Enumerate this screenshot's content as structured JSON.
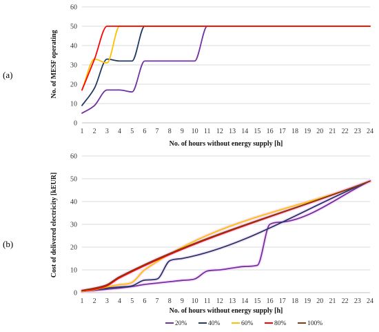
{
  "colors": {
    "20%": "#7030A0",
    "40%": "#1F3864",
    "60%": "#FFC000",
    "80%": "#FF0000",
    "100%": "#833C0B",
    "grid": "#D9D9D9",
    "axis": "#BFBFBF",
    "glow_b": "#F2C6F2"
  },
  "chart_data": [
    {
      "panel_label": "(a)",
      "type": "line",
      "xlabel": "No. of hours without energy supply [h]",
      "ylabel": "No. of MESF operating",
      "xlim": [
        1,
        24
      ],
      "ylim": [
        0,
        60
      ],
      "xticks": [
        1,
        2,
        3,
        4,
        5,
        6,
        7,
        8,
        9,
        10,
        11,
        12,
        13,
        14,
        15,
        16,
        17,
        18,
        19,
        20,
        21,
        22,
        23,
        24
      ],
      "yticks": [
        0,
        10,
        20,
        30,
        40,
        50,
        60
      ],
      "grid": "horizontal",
      "series": [
        {
          "name": "20%",
          "x": [
            1,
            2,
            3,
            4,
            5,
            6,
            7,
            8,
            9,
            10,
            11,
            12,
            24
          ],
          "y": [
            5,
            9,
            17,
            17,
            16,
            32,
            32,
            32,
            32,
            32,
            50,
            50,
            50
          ]
        },
        {
          "name": "40%",
          "x": [
            1,
            2,
            3,
            4,
            5,
            6,
            7,
            24
          ],
          "y": [
            9,
            18,
            33,
            32,
            32,
            50,
            50,
            50
          ]
        },
        {
          "name": "60%",
          "x": [
            1,
            2,
            3,
            4,
            5,
            24
          ],
          "y": [
            17,
            33,
            31,
            50,
            50,
            50
          ]
        },
        {
          "name": "80%",
          "x": [
            1,
            2,
            3,
            4,
            24
          ],
          "y": [
            17,
            33,
            50,
            50,
            50
          ]
        }
      ]
    },
    {
      "panel_label": "(b)",
      "type": "line",
      "xlabel": "No. of hours without energy supply [h]",
      "ylabel": "Cost of delivered electricity [kEUR]",
      "xlim": [
        1,
        24
      ],
      "ylim": [
        0,
        60
      ],
      "xticks": [
        1,
        2,
        3,
        4,
        5,
        6,
        7,
        8,
        9,
        10,
        11,
        12,
        13,
        14,
        15,
        16,
        17,
        18,
        19,
        20,
        21,
        22,
        23,
        24
      ],
      "yticks": [
        0,
        10,
        20,
        30,
        40,
        50,
        60
      ],
      "grid": "horizontal",
      "legend_position": "bottom",
      "legend": [
        "20%",
        "40%",
        "60%",
        "80%",
        "100%"
      ],
      "series": [
        {
          "name": "20%",
          "x": [
            1,
            2,
            3,
            4,
            5,
            6,
            7,
            8,
            9,
            10,
            11,
            12,
            13,
            14,
            15,
            16,
            17,
            24
          ],
          "y": [
            0.5,
            1.0,
            1.5,
            2.0,
            2.7,
            3.6,
            4.2,
            4.8,
            5.4,
            6.0,
            9.5,
            10.0,
            10.8,
            11.5,
            12.0,
            30.0,
            31.0,
            49.0
          ]
        },
        {
          "name": "40%",
          "x": [
            1,
            2,
            3,
            4,
            5,
            6,
            7,
            8,
            9,
            24
          ],
          "y": [
            0.5,
            1.2,
            2.0,
            2.5,
            3.0,
            5.5,
            6.0,
            14.0,
            15.0,
            49.0
          ]
        },
        {
          "name": "60%",
          "x": [
            1,
            2,
            3,
            4,
            5,
            6,
            24
          ],
          "y": [
            0.5,
            1.3,
            2.5,
            3.5,
            4.5,
            10.0,
            49.0
          ]
        },
        {
          "name": "80%",
          "x": [
            1,
            2,
            3,
            4,
            24
          ],
          "y": [
            0.8,
            1.5,
            3.0,
            6.5,
            49.0
          ]
        },
        {
          "name": "100%",
          "x": [
            1,
            2,
            3,
            4,
            24
          ],
          "y": [
            1.0,
            2.0,
            3.5,
            7.0,
            49.0
          ]
        }
      ]
    }
  ]
}
